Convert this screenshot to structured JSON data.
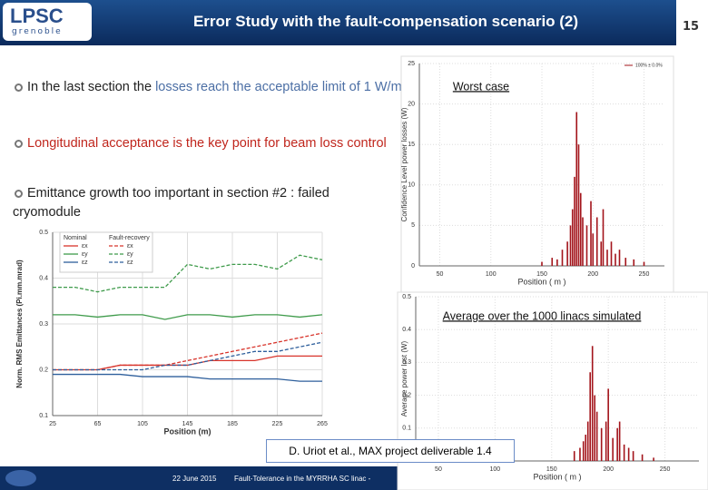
{
  "header": {
    "logo": "LPSC",
    "logo_sub": "grenoble",
    "title": "Error Study with the fault-compensation scenario (2)",
    "page_number": "15"
  },
  "bullets": [
    {
      "parts": [
        "In the last section the ",
        "losses reach the acceptable limit of 1 W/m"
      ]
    },
    {
      "parts": [
        "Longitudinal acceptance is the key point for beam loss control"
      ]
    },
    {
      "parts": [
        "Emittance growth too important in section #2 : failed cryomodule"
      ]
    }
  ],
  "citation": "D. Uriot et al., MAX project deliverable 1.4",
  "footer": {
    "date": "22 June 2015",
    "text": "Fault-Tolerance in the MYRRHA SC linac -"
  },
  "chart_data": [
    {
      "type": "line",
      "xlabel": "Position (m)",
      "ylabel": "Norm. RMS Emittances (Pi.mm.mrad)",
      "legend_titles": [
        "Nominal",
        "Fault-recovery"
      ],
      "x": [
        25,
        45,
        65,
        85,
        105,
        125,
        145,
        165,
        185,
        205,
        225,
        245,
        265
      ],
      "series": [
        {
          "name": "εx",
          "color": "#d8342b",
          "linestyle": "solid",
          "values": [
            0.2,
            0.2,
            0.2,
            0.21,
            0.21,
            0.21,
            0.21,
            0.22,
            0.22,
            0.22,
            0.23,
            0.23,
            0.23
          ]
        },
        {
          "name": "εy",
          "color": "#3f9b4b",
          "linestyle": "solid",
          "values": [
            0.32,
            0.32,
            0.315,
            0.32,
            0.32,
            0.31,
            0.32,
            0.32,
            0.315,
            0.32,
            0.32,
            0.315,
            0.32
          ]
        },
        {
          "name": "εz",
          "color": "#2e5f9c",
          "linestyle": "solid",
          "values": [
            0.19,
            0.19,
            0.19,
            0.19,
            0.185,
            0.185,
            0.185,
            0.18,
            0.18,
            0.18,
            0.18,
            0.175,
            0.175
          ]
        },
        {
          "name": "εx",
          "color": "#d8342b",
          "linestyle": "dashed",
          "values": [
            0.2,
            0.2,
            0.2,
            0.21,
            0.21,
            0.21,
            0.22,
            0.23,
            0.24,
            0.25,
            0.26,
            0.27,
            0.28
          ]
        },
        {
          "name": "εy",
          "color": "#3f9b4b",
          "linestyle": "dashed",
          "values": [
            0.38,
            0.38,
            0.37,
            0.38,
            0.38,
            0.38,
            0.43,
            0.42,
            0.43,
            0.43,
            0.42,
            0.45,
            0.44
          ]
        },
        {
          "name": "εz",
          "color": "#2e5f9c",
          "linestyle": "dashed",
          "values": [
            0.2,
            0.2,
            0.2,
            0.2,
            0.2,
            0.21,
            0.21,
            0.22,
            0.23,
            0.24,
            0.24,
            0.25,
            0.26
          ]
        }
      ],
      "xlim": [
        25,
        265
      ],
      "xticks": [
        25,
        65,
        105,
        145,
        185,
        225,
        265
      ],
      "ylim": [
        0.1,
        0.5
      ],
      "yticks": [
        0.1,
        0.2,
        0.3,
        0.4,
        0.5
      ],
      "grid": true
    },
    {
      "type": "bar",
      "title": "Worst case",
      "xlabel": "Position ( m )",
      "ylabel": "Confidence Level power losses (W)",
      "x": [
        150,
        160,
        165,
        170,
        175,
        178,
        180,
        182,
        184,
        186,
        188,
        190,
        194,
        198,
        200,
        204,
        208,
        210,
        214,
        218,
        222,
        226,
        232,
        240,
        250
      ],
      "series": [
        {
          "name": "100% ± 0.0%",
          "color": "#a3141b",
          "values": [
            0.5,
            1,
            0.8,
            2,
            3,
            5,
            7,
            11,
            19,
            15,
            9,
            6,
            5,
            8,
            4,
            6,
            3,
            7,
            2,
            3,
            1.5,
            2,
            1,
            0.8,
            0.5
          ]
        }
      ],
      "xlim": [
        30,
        270
      ],
      "xticks": [
        50,
        100,
        150,
        200,
        250
      ],
      "ylim": [
        0,
        25
      ],
      "yticks": [
        0,
        5,
        10,
        15,
        20,
        25
      ],
      "grid": true
    },
    {
      "type": "bar",
      "title": "Average over the 1000 linacs simulated",
      "xlabel": "Position ( m )",
      "ylabel": "Average power lost (W)",
      "x": [
        170,
        175,
        178,
        180,
        182,
        184,
        186,
        188,
        190,
        194,
        198,
        200,
        204,
        208,
        210,
        214,
        218,
        222,
        230,
        240
      ],
      "series": [
        {
          "color": "#a3141b",
          "values": [
            0.03,
            0.04,
            0.06,
            0.08,
            0.12,
            0.27,
            0.35,
            0.2,
            0.15,
            0.1,
            0.12,
            0.22,
            0.07,
            0.1,
            0.12,
            0.05,
            0.04,
            0.03,
            0.02,
            0.01
          ]
        }
      ],
      "xlim": [
        30,
        280
      ],
      "xticks": [
        50,
        100,
        150,
        200,
        250
      ],
      "ylim": [
        0,
        0.5
      ],
      "yticks": [
        0,
        0.1,
        0.2,
        0.3,
        0.4,
        0.5
      ],
      "grid": true
    }
  ]
}
